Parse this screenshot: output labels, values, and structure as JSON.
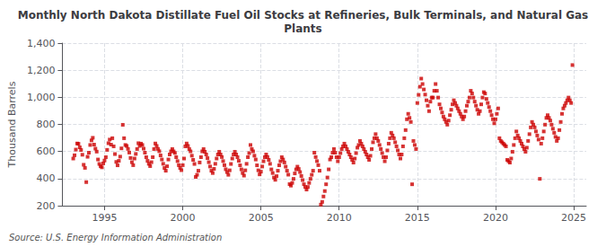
{
  "chart_data": {
    "type": "scatter",
    "title": "Monthly North Dakota Distillate Fuel Oil Stocks at Refineries, Bulk Terminals, and Natural Gas\nPlants",
    "ylabel": "Thousand Barrels",
    "source": "Source: U.S. Energy Information Administration",
    "color": "#cc0000",
    "marker": "square",
    "grid": true,
    "ylim": [
      200,
      1400
    ],
    "yticks": [
      200,
      400,
      600,
      800,
      {
        "value": 1000,
        "label": "1,000"
      },
      {
        "value": 1200,
        "label": "1,200"
      },
      {
        "value": 1400,
        "label": "1,400"
      }
    ],
    "xlim": [
      1992.3,
      2025.8
    ],
    "xticks": [
      1995,
      2000,
      2005,
      2010,
      2015,
      2020,
      2025
    ],
    "x": [
      1993.0,
      1993.083,
      1993.167,
      1993.25,
      1993.333,
      1993.417,
      1993.5,
      1993.583,
      1993.667,
      1993.75,
      1993.833,
      1993.917,
      1994.0,
      1994.083,
      1994.167,
      1994.25,
      1994.333,
      1994.417,
      1994.5,
      1994.583,
      1994.667,
      1994.75,
      1994.833,
      1994.917,
      1995.0,
      1995.083,
      1995.167,
      1995.25,
      1995.333,
      1995.417,
      1995.5,
      1995.583,
      1995.667,
      1995.75,
      1995.833,
      1995.917,
      1996.0,
      1996.083,
      1996.167,
      1996.25,
      1996.333,
      1996.417,
      1996.5,
      1996.583,
      1996.667,
      1996.75,
      1996.833,
      1996.917,
      1997.0,
      1997.083,
      1997.167,
      1997.25,
      1997.333,
      1997.417,
      1997.5,
      1997.583,
      1997.667,
      1997.75,
      1997.833,
      1997.917,
      1998.0,
      1998.083,
      1998.167,
      1998.25,
      1998.333,
      1998.417,
      1998.5,
      1998.583,
      1998.667,
      1998.75,
      1998.833,
      1998.917,
      1999.0,
      1999.083,
      1999.167,
      1999.25,
      1999.333,
      1999.417,
      1999.5,
      1999.583,
      1999.667,
      1999.75,
      1999.833,
      1999.917,
      2000.0,
      2000.083,
      2000.167,
      2000.25,
      2000.333,
      2000.417,
      2000.5,
      2000.583,
      2000.667,
      2000.75,
      2000.833,
      2000.917,
      2001.0,
      2001.083,
      2001.167,
      2001.25,
      2001.333,
      2001.417,
      2001.5,
      2001.583,
      2001.667,
      2001.75,
      2001.833,
      2001.917,
      2002.0,
      2002.083,
      2002.167,
      2002.25,
      2002.333,
      2002.417,
      2002.5,
      2002.583,
      2002.667,
      2002.75,
      2002.833,
      2002.917,
      2003.0,
      2003.083,
      2003.167,
      2003.25,
      2003.333,
      2003.417,
      2003.5,
      2003.583,
      2003.667,
      2003.75,
      2003.833,
      2003.917,
      2004.0,
      2004.083,
      2004.167,
      2004.25,
      2004.333,
      2004.417,
      2004.5,
      2004.583,
      2004.667,
      2004.75,
      2004.833,
      2004.917,
      2005.0,
      2005.083,
      2005.167,
      2005.25,
      2005.333,
      2005.417,
      2005.5,
      2005.583,
      2005.667,
      2005.75,
      2005.833,
      2005.917,
      2006.0,
      2006.083,
      2006.167,
      2006.25,
      2006.333,
      2006.417,
      2006.5,
      2006.583,
      2006.667,
      2006.75,
      2006.833,
      2006.917,
      2007.0,
      2007.083,
      2007.167,
      2007.25,
      2007.333,
      2007.417,
      2007.5,
      2007.583,
      2007.667,
      2007.75,
      2007.833,
      2007.917,
      2008.0,
      2008.083,
      2008.167,
      2008.25,
      2008.333,
      2008.417,
      2008.5,
      2008.583,
      2008.667,
      2008.75,
      2008.833,
      2008.917,
      2009.0,
      2009.083,
      2009.167,
      2009.25,
      2009.333,
      2009.417,
      2009.5,
      2009.583,
      2009.667,
      2009.75,
      2009.833,
      2009.917,
      2010.0,
      2010.083,
      2010.167,
      2010.25,
      2010.333,
      2010.417,
      2010.5,
      2010.583,
      2010.667,
      2010.75,
      2010.833,
      2010.917,
      2011.0,
      2011.083,
      2011.167,
      2011.25,
      2011.333,
      2011.417,
      2011.5,
      2011.583,
      2011.667,
      2011.75,
      2011.833,
      2011.917,
      2012.0,
      2012.083,
      2012.167,
      2012.25,
      2012.333,
      2012.417,
      2012.5,
      2012.583,
      2012.667,
      2012.75,
      2012.833,
      2012.917,
      2013.0,
      2013.083,
      2013.167,
      2013.25,
      2013.333,
      2013.417,
      2013.5,
      2013.583,
      2013.667,
      2013.75,
      2013.833,
      2013.917,
      2014.0,
      2014.083,
      2014.167,
      2014.25,
      2014.333,
      2014.417,
      2014.5,
      2014.583,
      2014.667,
      2014.75,
      2014.833,
      2014.917,
      2015.0,
      2015.083,
      2015.167,
      2015.25,
      2015.333,
      2015.417,
      2015.5,
      2015.583,
      2015.667,
      2015.75,
      2015.833,
      2015.917,
      2016.0,
      2016.083,
      2016.167,
      2016.25,
      2016.333,
      2016.417,
      2016.5,
      2016.583,
      2016.667,
      2016.75,
      2016.833,
      2016.917,
      2017.0,
      2017.083,
      2017.167,
      2017.25,
      2017.333,
      2017.417,
      2017.5,
      2017.583,
      2017.667,
      2017.75,
      2017.833,
      2017.917,
      2018.0,
      2018.083,
      2018.167,
      2018.25,
      2018.333,
      2018.417,
      2018.5,
      2018.583,
      2018.667,
      2018.75,
      2018.833,
      2018.917,
      2019.0,
      2019.083,
      2019.167,
      2019.25,
      2019.333,
      2019.417,
      2019.5,
      2019.583,
      2019.667,
      2019.75,
      2019.833,
      2019.917,
      2020.0,
      2020.083,
      2020.167,
      2020.25,
      2020.333,
      2020.417,
      2020.5,
      2020.583,
      2020.667,
      2020.75,
      2020.833,
      2020.917,
      2021.0,
      2021.083,
      2021.167,
      2021.25,
      2021.333,
      2021.417,
      2021.5,
      2021.583,
      2021.667,
      2021.75,
      2021.833,
      2021.917,
      2022.0,
      2022.083,
      2022.167,
      2022.25,
      2022.333,
      2022.417,
      2022.5,
      2022.583,
      2022.667,
      2022.75,
      2022.833,
      2022.917,
      2023.0,
      2023.083,
      2023.167,
      2023.25,
      2023.333,
      2023.417,
      2023.5,
      2023.583,
      2023.667,
      2023.75,
      2023.833,
      2023.917,
      2024.0,
      2024.083,
      2024.167,
      2024.25,
      2024.333,
      2024.417,
      2024.5,
      2024.583,
      2024.667,
      2024.75,
      2024.833,
      2024.917
    ],
    "values": [
      548,
      572,
      614,
      659,
      657,
      631,
      611,
      576,
      502,
      479,
      374,
      561,
      591,
      648,
      682,
      701,
      651,
      621,
      599,
      541,
      508,
      491,
      483,
      512,
      533,
      558,
      612,
      661,
      688,
      651,
      698,
      638,
      581,
      523,
      498,
      531,
      562,
      623,
      797,
      698,
      648,
      641,
      619,
      592,
      552,
      521,
      499,
      548,
      582,
      618,
      661,
      641,
      658,
      648,
      621,
      591,
      558,
      531,
      509,
      492,
      521,
      558,
      618,
      659,
      641,
      619,
      602,
      571,
      541,
      509,
      478,
      458,
      491,
      541,
      578,
      601,
      618,
      601,
      589,
      558,
      529,
      499,
      478,
      462,
      499,
      548,
      638,
      659,
      641,
      618,
      601,
      569,
      538,
      508,
      412,
      428,
      458,
      519,
      558,
      601,
      618,
      598,
      578,
      551,
      521,
      489,
      458,
      441,
      472,
      509,
      548,
      578,
      598,
      578,
      559,
      529,
      499,
      469,
      448,
      428,
      461,
      508,
      548,
      578,
      598,
      578,
      558,
      531,
      498,
      468,
      441,
      422,
      461,
      509,
      558,
      588,
      648,
      618,
      601,
      569,
      541,
      498,
      461,
      431,
      451,
      489,
      528,
      558,
      578,
      559,
      538,
      509,
      468,
      441,
      408,
      391,
      418,
      458,
      498,
      528,
      558,
      541,
      519,
      488,
      458,
      429,
      359,
      348,
      368,
      398,
      438,
      468,
      488,
      471,
      448,
      419,
      389,
      358,
      338,
      319,
      338,
      368,
      398,
      428,
      458,
      591,
      559,
      529,
      499,
      458,
      208,
      228,
      268,
      308,
      358,
      408,
      468,
      541,
      558,
      591,
      618,
      591,
      558,
      528,
      558,
      588,
      618,
      638,
      658,
      638,
      618,
      598,
      578,
      558,
      538,
      518,
      548,
      588,
      628,
      648,
      678,
      658,
      638,
      618,
      598,
      578,
      558,
      538,
      568,
      618,
      668,
      698,
      728,
      698,
      678,
      648,
      618,
      588,
      558,
      528,
      558,
      608,
      658,
      698,
      738,
      718,
      698,
      668,
      638,
      608,
      578,
      548,
      578,
      638,
      698,
      758,
      838,
      878,
      848,
      818,
      358,
      678,
      648,
      618,
      958,
      1018,
      1078,
      1138,
      1098,
      1058,
      1020,
      978,
      938,
      898,
      968,
      998,
      998,
      1048,
      1098,
      1048,
      998,
      948,
      918,
      888,
      858,
      838,
      818,
      798,
      828,
      868,
      908,
      948,
      978,
      958,
      938,
      918,
      898,
      878,
      858,
      838,
      858,
      898,
      938,
      968,
      998,
      1048,
      1028,
      998,
      968,
      938,
      908,
      878,
      898,
      948,
      998,
      1038,
      1028,
      988,
      958,
      928,
      898,
      868,
      838,
      808,
      838,
      878,
      918,
      698,
      678,
      668,
      658,
      648,
      638,
      538,
      528,
      518,
      548,
      598,
      648,
      698,
      748,
      718,
      698,
      678,
      658,
      638,
      618,
      598,
      628,
      678,
      728,
      778,
      818,
      798,
      778,
      748,
      718,
      688,
      398,
      658,
      698,
      748,
      798,
      848,
      868,
      848,
      828,
      798,
      768,
      738,
      708,
      678,
      698,
      758,
      818,
      878,
      918,
      938,
      958,
      978,
      998,
      978,
      958,
      1238
    ]
  }
}
